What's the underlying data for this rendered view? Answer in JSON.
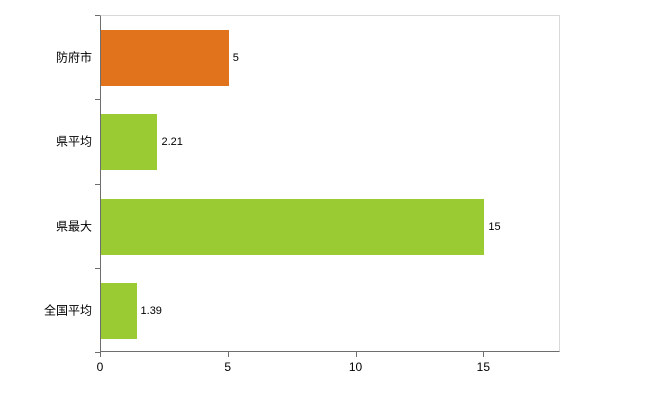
{
  "chart_data": {
    "type": "bar",
    "orientation": "horizontal",
    "title": "",
    "xlabel": "",
    "ylabel": "",
    "categories": [
      "防府市",
      "県平均",
      "県最大",
      "全国平均"
    ],
    "values": [
      5,
      2.21,
      15,
      1.39
    ],
    "value_labels": [
      "5",
      "2.21",
      "15",
      "1.39"
    ],
    "bar_colors": [
      "#e2731d",
      "#9acb32",
      "#9acb32",
      "#9acb32"
    ],
    "x_ticks": [
      0,
      5,
      10,
      15
    ],
    "x_tick_labels": [
      "0",
      "5",
      "10",
      "15"
    ],
    "xlim": [
      0,
      18
    ],
    "grid": false,
    "legend_position": "none"
  },
  "colors": {
    "axis": "#6e6e6e",
    "plot_border": "#d9d9d9",
    "background": "#ffffff",
    "text": "#000000"
  }
}
